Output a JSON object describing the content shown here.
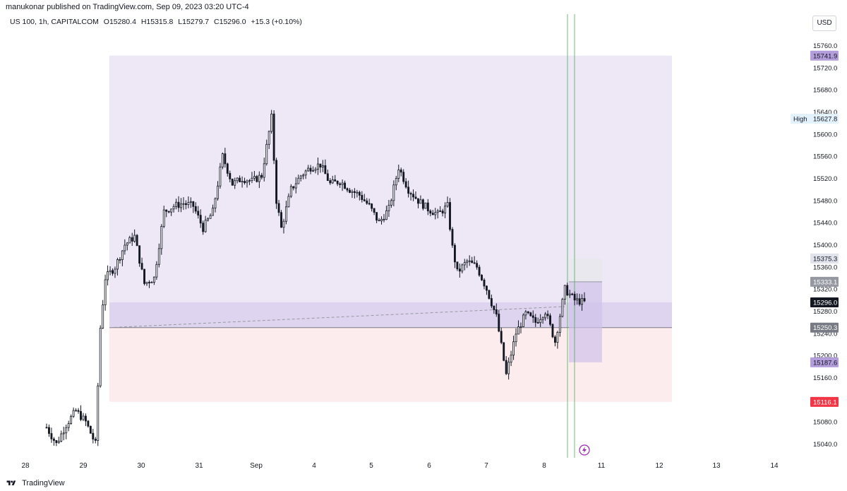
{
  "header": {
    "published_by": "manukonar published on TradingView.com, Sep 09, 2023 03:20 UTC-4"
  },
  "legend": {
    "symbol": "US 100, 1h, CAPITALCOM",
    "open": "O15280.4",
    "high": "H15315.8",
    "low": "L15279.7",
    "close": "C15296.0",
    "change": "+15.3 (+0.10%)"
  },
  "currency": "USD",
  "footer": {
    "brand": "TradingView"
  },
  "price_labels": [
    {
      "text": "15741.9",
      "value": 15741.9,
      "bg": "#b39ddb",
      "fg": "#131722"
    },
    {
      "text": "15627.8",
      "value": 15627.8,
      "bg": "#e3f2fd",
      "fg": "#131722",
      "tag": "High"
    },
    {
      "text": "15375.3",
      "value": 15375.3,
      "bg": "#e0e3eb",
      "fg": "#131722"
    },
    {
      "text": "15333.1",
      "value": 15333.1,
      "bg": "#9598a1",
      "fg": "#ffffff"
    },
    {
      "text": "15296.0",
      "value": 15296.0,
      "bg": "#131722",
      "fg": "#ffffff"
    },
    {
      "text": "15250.3",
      "value": 15250.3,
      "bg": "#787b86",
      "fg": "#ffffff"
    },
    {
      "text": "15187.6",
      "value": 15187.6,
      "bg": "#b39ddb",
      "fg": "#131722"
    },
    {
      "text": "15116.1",
      "value": 15116.1,
      "bg": "#f23645",
      "fg": "#ffffff"
    }
  ],
  "colors": {
    "up": "#ffffff",
    "down": "#131722",
    "wick": "#131722",
    "zone_purple": "#ede7f6",
    "zone_purple_deep": "#d1c4e9",
    "zone_red": "#fdecee",
    "zone_grey": "#e8e8ee",
    "vline": "#4caf50"
  },
  "chart_data": {
    "type": "candlestick",
    "x_ticks": [
      "28",
      "29",
      "30",
      "31",
      "Sep",
      "4",
      "5",
      "6",
      "7",
      "8",
      "11",
      "12",
      "13",
      "14"
    ],
    "y_ticks": [
      "15760.0",
      "15720.0",
      "15680.0",
      "15640.0",
      "15600.0",
      "15560.0",
      "15520.0",
      "15480.0",
      "15440.0",
      "15400.0",
      "15360.0",
      "15320.0",
      "15280.0",
      "15240.0",
      "15200.0",
      "15160.0",
      "15120.0",
      "15080.0",
      "15040.0"
    ],
    "ylim": [
      15015,
      15785
    ],
    "last_close": 15296.0,
    "day_high": 15627.8,
    "levels": {
      "target": 15741.9,
      "entry": 15250.3,
      "stop": 15116.1,
      "box_top": 15375.3,
      "box_mid": 15333.1,
      "box_low": 15187.6,
      "zone_upper": 15296.0
    },
    "price_path": [
      [
        0,
        15070
      ],
      [
        4,
        15040
      ],
      [
        8,
        15075
      ],
      [
        12,
        15100
      ],
      [
        16,
        15080
      ],
      [
        20,
        15040
      ],
      [
        22,
        15250
      ],
      [
        24,
        15340
      ],
      [
        28,
        15360
      ],
      [
        32,
        15400
      ],
      [
        36,
        15415
      ],
      [
        40,
        15330
      ],
      [
        44,
        15340
      ],
      [
        48,
        15460
      ],
      [
        52,
        15470
      ],
      [
        56,
        15475
      ],
      [
        60,
        15470
      ],
      [
        64,
        15430
      ],
      [
        68,
        15460
      ],
      [
        72,
        15560
      ],
      [
        76,
        15510
      ],
      [
        80,
        15520
      ],
      [
        84,
        15515
      ],
      [
        88,
        15525
      ],
      [
        92,
        15630
      ],
      [
        94,
        15480
      ],
      [
        96,
        15430
      ],
      [
        100,
        15500
      ],
      [
        104,
        15525
      ],
      [
        108,
        15540
      ],
      [
        112,
        15545
      ],
      [
        116,
        15510
      ],
      [
        120,
        15515
      ],
      [
        124,
        15500
      ],
      [
        128,
        15490
      ],
      [
        132,
        15470
      ],
      [
        136,
        15440
      ],
      [
        140,
        15465
      ],
      [
        144,
        15540
      ],
      [
        148,
        15500
      ],
      [
        152,
        15480
      ],
      [
        156,
        15465
      ],
      [
        160,
        15455
      ],
      [
        164,
        15470
      ],
      [
        166,
        15395
      ],
      [
        168,
        15350
      ],
      [
        172,
        15370
      ],
      [
        176,
        15360
      ],
      [
        180,
        15320
      ],
      [
        184,
        15270
      ],
      [
        188,
        15165
      ],
      [
        192,
        15240
      ],
      [
        196,
        15275
      ],
      [
        200,
        15260
      ],
      [
        204,
        15280
      ],
      [
        208,
        15225
      ],
      [
        212,
        15320
      ],
      [
        216,
        15300
      ],
      [
        220,
        15296
      ]
    ]
  }
}
